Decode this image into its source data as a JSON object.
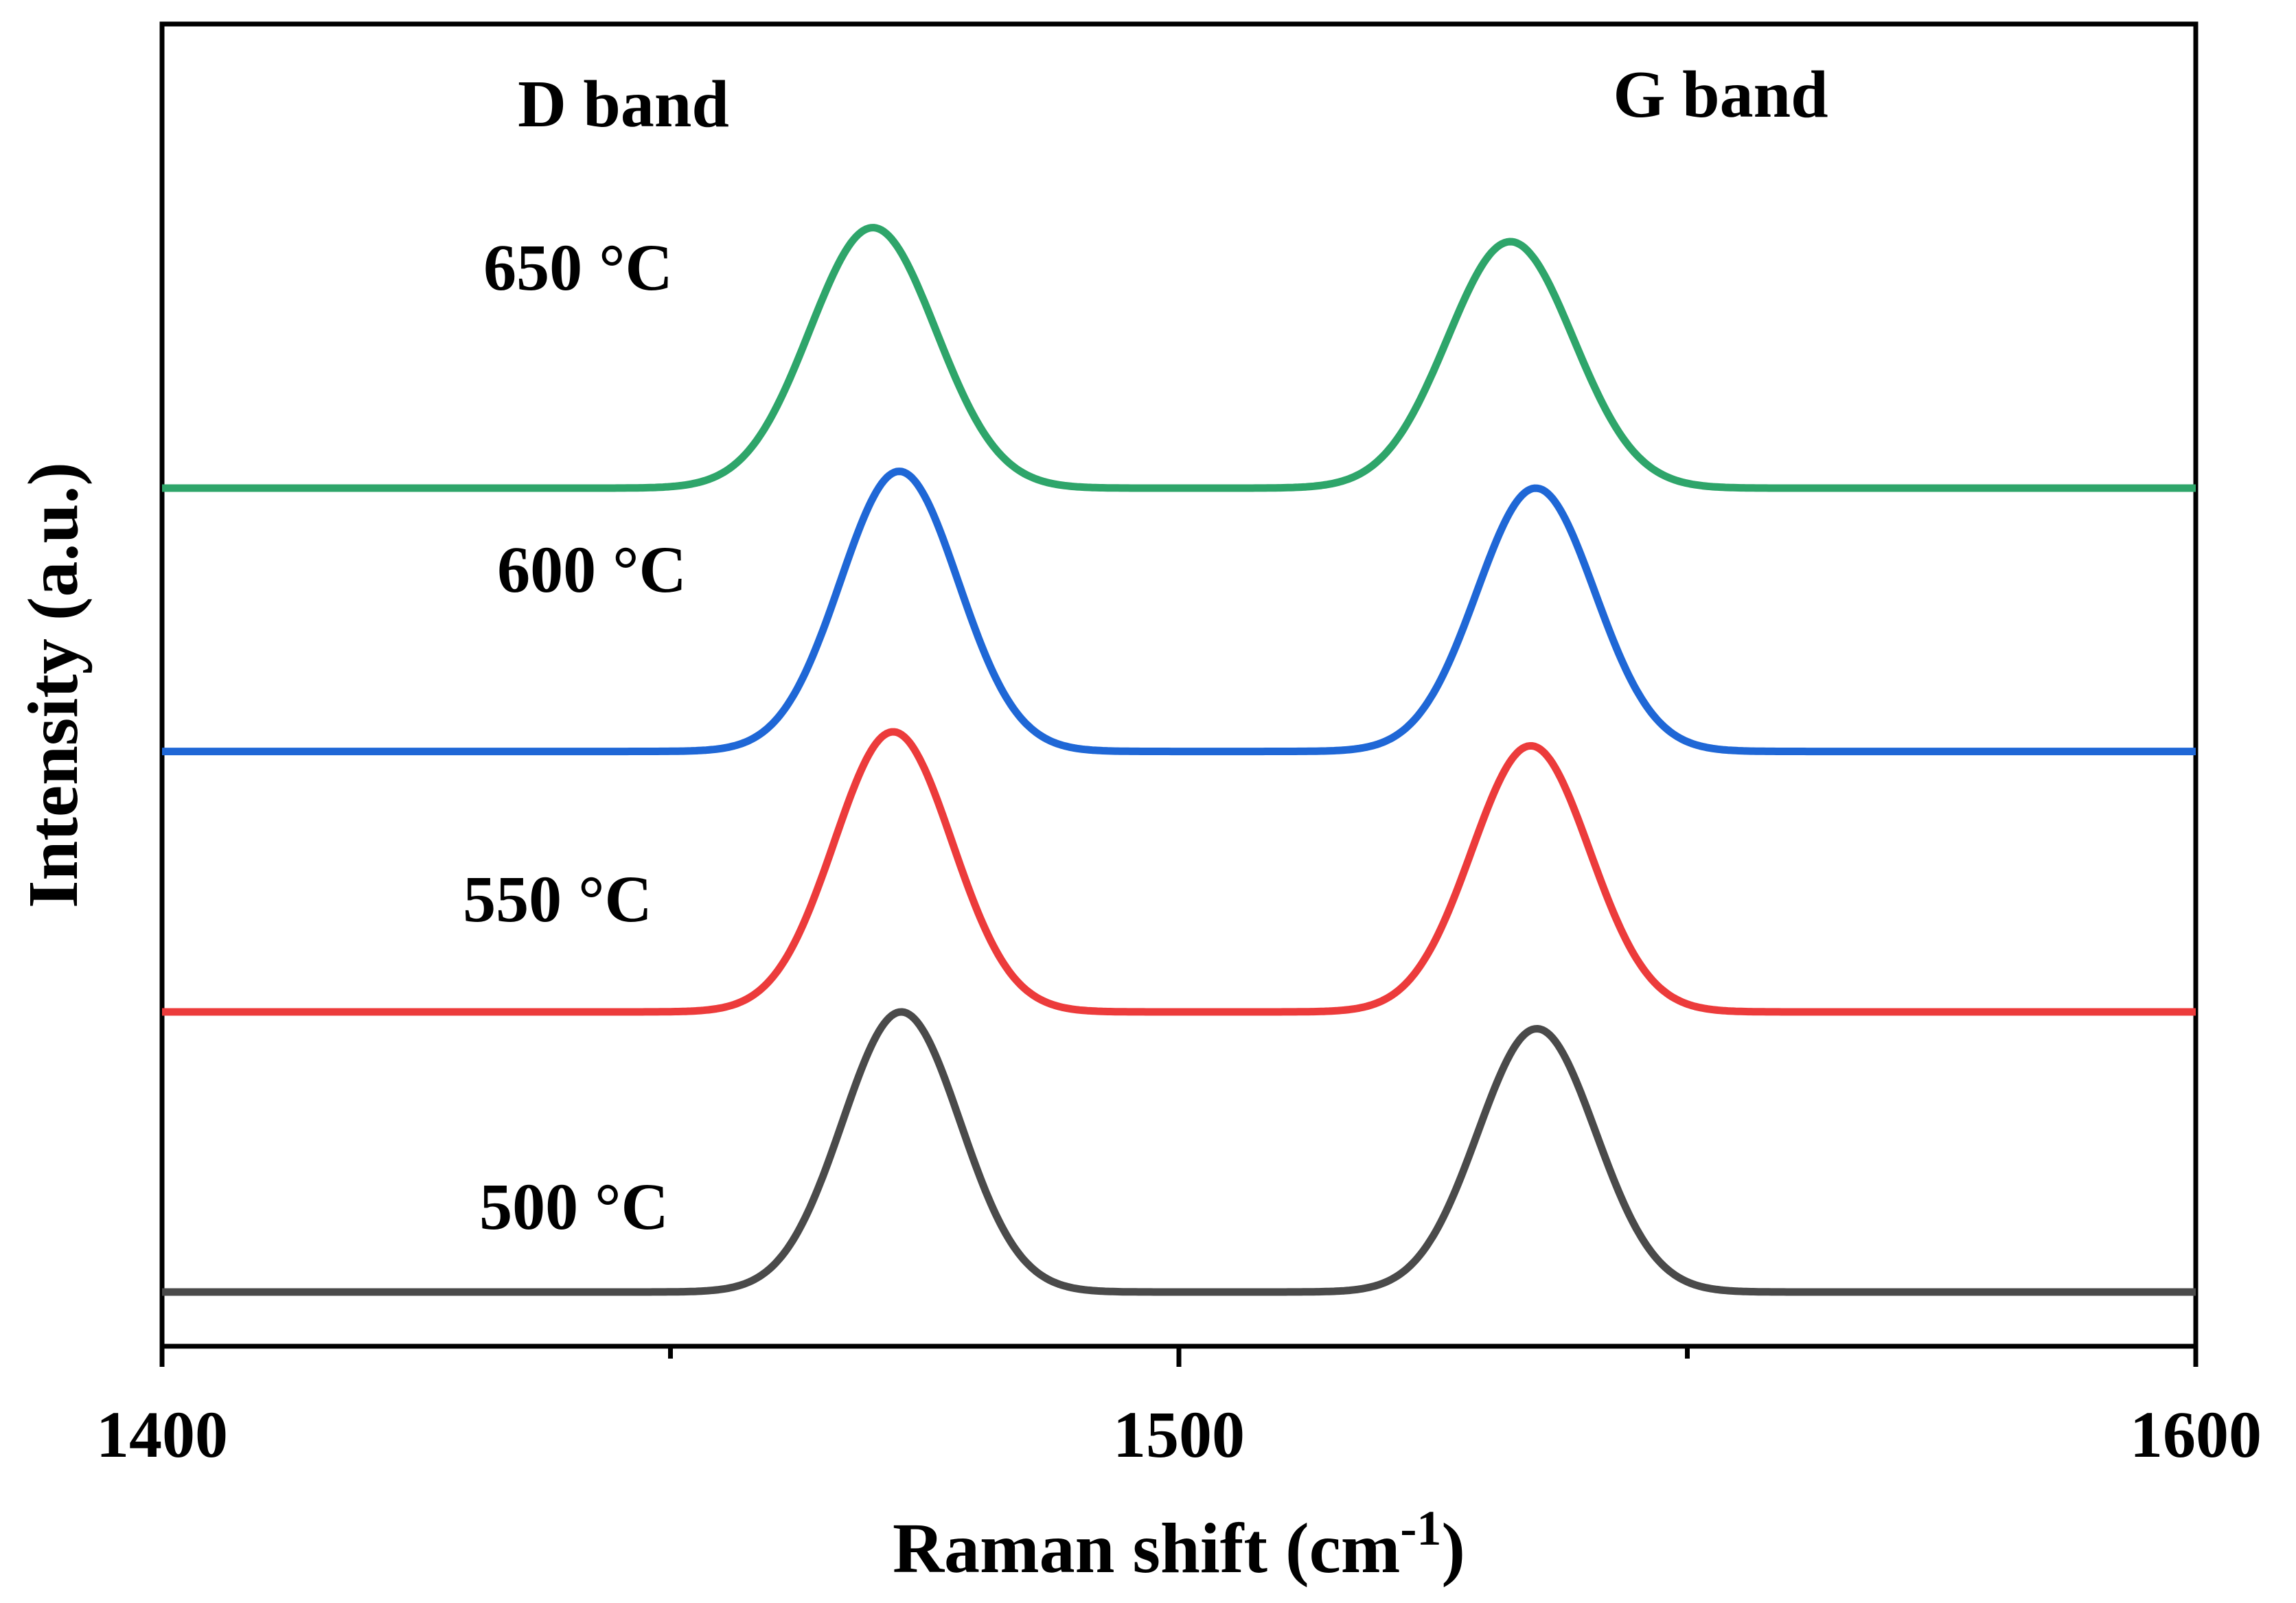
{
  "chart_data": {
    "type": "line",
    "xlabel": "Raman shift (cm",
    "xlabel_sup": "-1",
    "xlabel_close": ")",
    "ylabel": "Intensity (a.u.)",
    "xlim": [
      1400,
      1600
    ],
    "x_ticks": [
      1400,
      1450,
      1500,
      1550,
      1600
    ],
    "x_tick_labels": [
      "1400",
      "1500",
      "1600"
    ],
    "y_ticks_shown": false,
    "annotations": {
      "d_band": "D band",
      "g_band": "G band"
    },
    "series": [
      {
        "name": "500 °C",
        "color": "#4a4a4a",
        "offset": 0,
        "peaks": [
          {
            "center": 1472.7,
            "height": 1.0,
            "sigma": 5.8
          },
          {
            "center": 1535.2,
            "height": 0.94,
            "sigma": 5.8
          }
        ]
      },
      {
        "name": "550 °C",
        "color": "#ec3b3b",
        "offset": 1.0,
        "peaks": [
          {
            "center": 1471.9,
            "height": 1.0,
            "sigma": 5.8
          },
          {
            "center": 1534.6,
            "height": 0.95,
            "sigma": 5.8
          }
        ]
      },
      {
        "name": "600 °C",
        "color": "#1f67d6",
        "offset": 1.93,
        "peaks": [
          {
            "center": 1472.5,
            "height": 1.0,
            "sigma": 5.8
          },
          {
            "center": 1535.1,
            "height": 0.94,
            "sigma": 5.8
          }
        ]
      },
      {
        "name": "650 °C",
        "color": "#2ea56a",
        "offset": 2.87,
        "peaks": [
          {
            "center": 1469.9,
            "height": 0.93,
            "sigma": 6.2
          },
          {
            "center": 1532.6,
            "height": 0.88,
            "sigma": 6.2
          }
        ]
      }
    ]
  }
}
